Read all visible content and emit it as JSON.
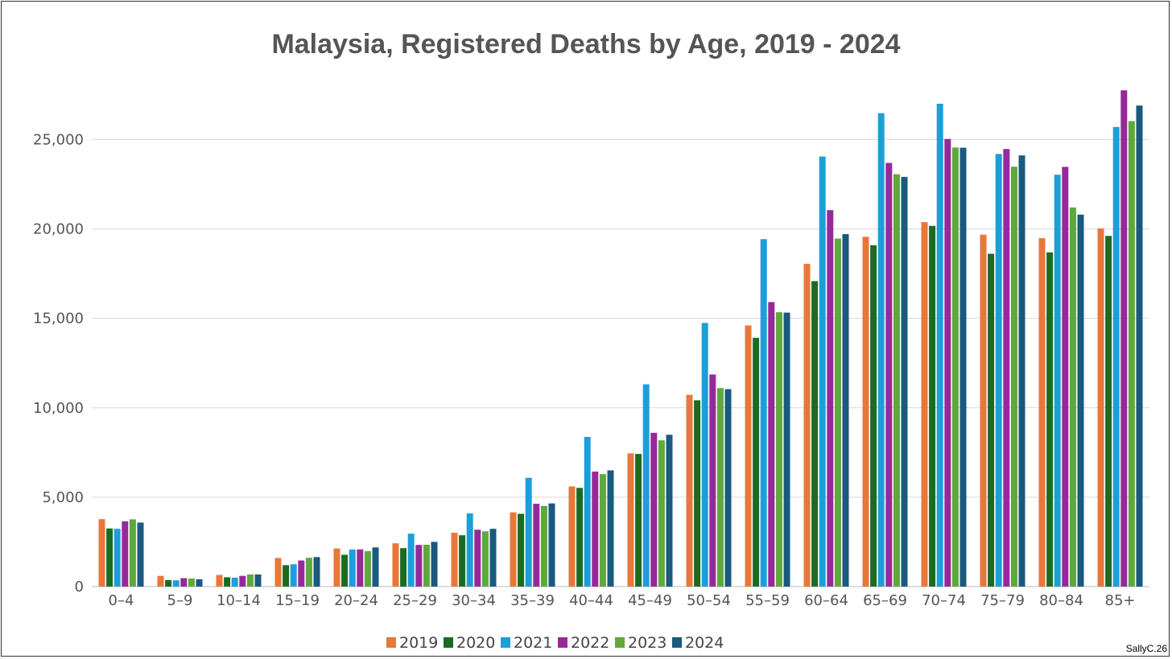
{
  "title": "Malaysia, Registered Deaths by Age, 2019 - 2024",
  "credit": "SallyC.26",
  "chart_data": {
    "type": "bar",
    "title": "Malaysia, Registered Deaths by Age, 2019 - 2024",
    "xlabel": "",
    "ylabel": "",
    "ylim": [
      0,
      27800
    ],
    "yticks": [
      0,
      5000,
      10000,
      15000,
      20000,
      25000
    ],
    "ytick_labels": [
      "0",
      "5,000",
      "10,000",
      "15,000",
      "20,000",
      "25,000"
    ],
    "grid": true,
    "legend_position": "bottom",
    "categories": [
      "0–4",
      "5–9",
      "10–14",
      "15–19",
      "20–24",
      "25–29",
      "30–34",
      "35–39",
      "40–44",
      "45–49",
      "50–54",
      "55–59",
      "60–64",
      "65–69",
      "70–74",
      "75–79",
      "80–84",
      "85+"
    ],
    "series": [
      {
        "name": "2019",
        "color": "#e8773a",
        "values": [
          3770,
          600,
          650,
          1600,
          2130,
          2420,
          3010,
          4150,
          5600,
          7450,
          10720,
          14600,
          18050,
          19560,
          20380,
          19680,
          19480,
          20030
        ]
      },
      {
        "name": "2020",
        "color": "#1c6b23",
        "values": [
          3250,
          360,
          520,
          1200,
          1780,
          2150,
          2870,
          4070,
          5520,
          7420,
          10420,
          13910,
          17080,
          19090,
          20170,
          18610,
          18690,
          19610
        ]
      },
      {
        "name": "2021",
        "color": "#1e9ed9",
        "values": [
          3230,
          350,
          500,
          1250,
          2070,
          2960,
          4090,
          6080,
          8370,
          11310,
          14740,
          19430,
          24050,
          26470,
          27000,
          24190,
          23030,
          25700
        ]
      },
      {
        "name": "2022",
        "color": "#96299a",
        "values": [
          3650,
          470,
          600,
          1460,
          2080,
          2330,
          3180,
          4630,
          6430,
          8600,
          11860,
          15910,
          21050,
          23690,
          25030,
          24470,
          23470,
          27750
        ]
      },
      {
        "name": "2023",
        "color": "#5ea83c",
        "values": [
          3760,
          450,
          680,
          1610,
          1980,
          2340,
          3090,
          4510,
          6290,
          8180,
          11100,
          15340,
          19460,
          23060,
          24550,
          23480,
          21200,
          26030
        ]
      },
      {
        "name": "2024",
        "color": "#1a5a7e",
        "values": [
          3580,
          410,
          680,
          1650,
          2190,
          2500,
          3230,
          4650,
          6500,
          8490,
          11040,
          15320,
          19710,
          22910,
          24540,
          24110,
          20800,
          26900
        ]
      }
    ]
  }
}
